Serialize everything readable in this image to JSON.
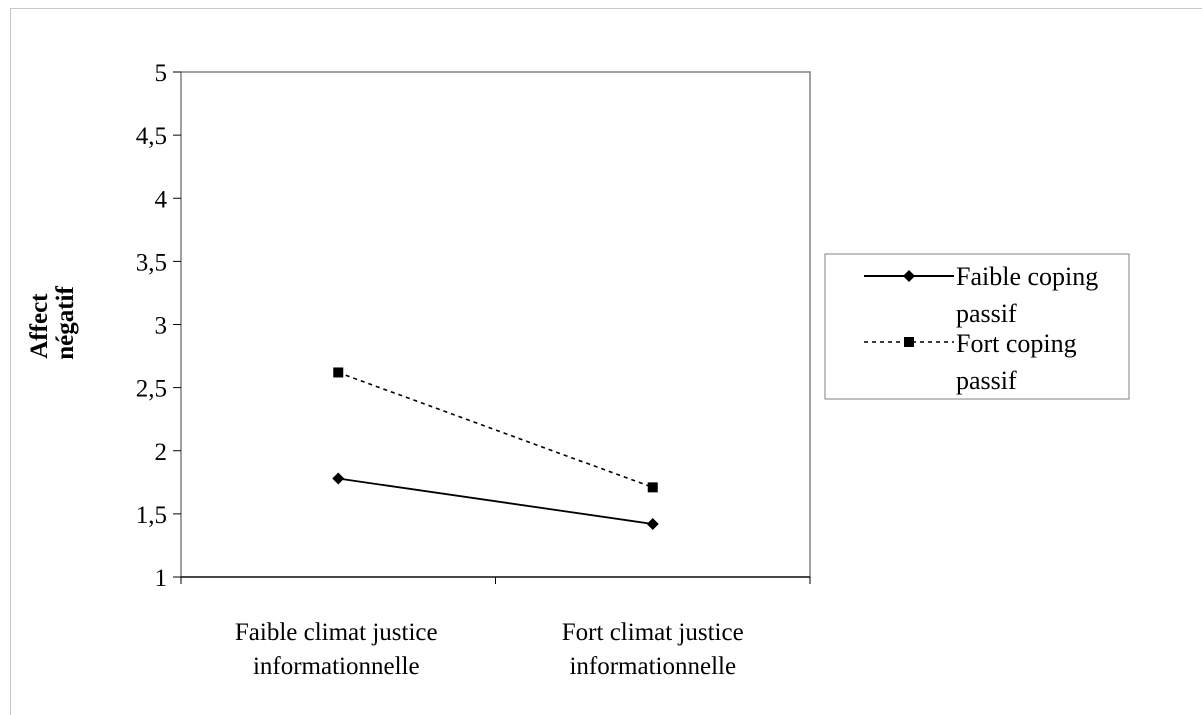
{
  "chart_data": {
    "type": "line",
    "title": "",
    "xlabel": "",
    "ylabel_lines": [
      "Affect",
      "négatif"
    ],
    "categories": [
      [
        "Faible climat justice",
        "informationnelle"
      ],
      [
        "Fort climat justice",
        "informationnelle"
      ]
    ],
    "y_ticks": [
      "1",
      "1,5",
      "2",
      "2,5",
      "3",
      "3,5",
      "4",
      "4,5",
      "5"
    ],
    "ylim": [
      1,
      5
    ],
    "grid": false,
    "legend_position": "right",
    "series": [
      {
        "name_lines": [
          "Faible coping",
          "passif"
        ],
        "values": [
          1.78,
          1.42
        ],
        "line_style": "solid",
        "marker": "diamond",
        "color": "#000000"
      },
      {
        "name_lines": [
          "Fort coping",
          "passif"
        ],
        "values": [
          2.62,
          1.71
        ],
        "line_style": "dashed",
        "marker": "square",
        "color": "#000000"
      }
    ]
  }
}
